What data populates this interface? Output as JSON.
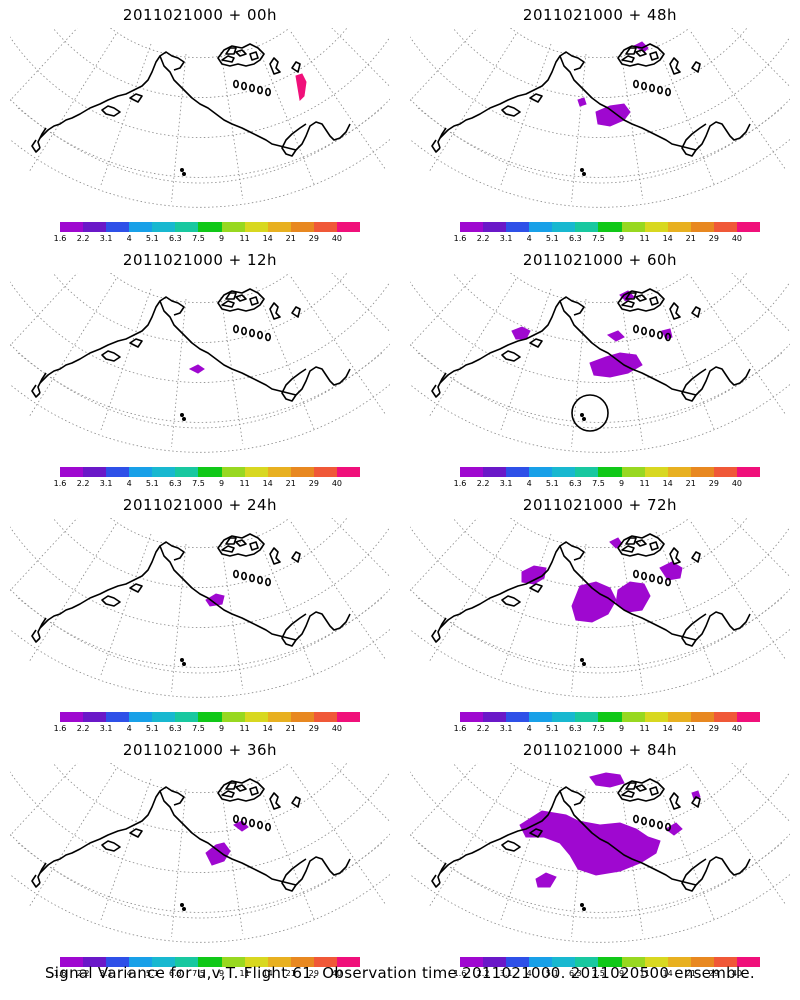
{
  "palette": [
    "#9f08d0",
    "#6a18c8",
    "#2e50e8",
    "#18a0e8",
    "#18b8d0",
    "#18c8a0",
    "#10c818",
    "#98d820",
    "#d8d820",
    "#e8b020",
    "#e88820",
    "#f05838",
    "#f0107a"
  ],
  "scale_labels": [
    "1.6",
    "2.2",
    "3.1",
    "4",
    "5.1",
    "6.3",
    "7.5",
    "9",
    "11",
    "14",
    "21",
    "29",
    "40"
  ],
  "panels": [
    {
      "title": "2011021000 + 00h"
    },
    {
      "title": "2011021000 + 48h"
    },
    {
      "title": "2011021000 + 12h"
    },
    {
      "title": "2011021000 + 60h"
    },
    {
      "title": "2011021000 + 24h"
    },
    {
      "title": "2011021000 + 72h"
    },
    {
      "title": "2011021000 + 36h"
    },
    {
      "title": "2011021000 + 84h"
    }
  ],
  "footer": "Signal Variance for u,v,T. Flight 61. Observation time 2011021000. 2011020500 ensemble."
}
